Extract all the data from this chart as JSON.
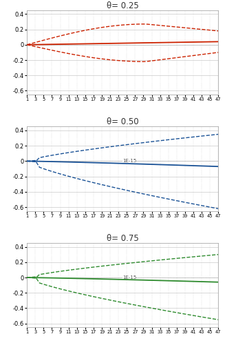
{
  "panels": [
    {
      "title": "θ= 0.25",
      "color": "#cc2200",
      "type": "bell"
    },
    {
      "title": "θ= 0.50",
      "color": "#1a5296",
      "type": "diverging"
    },
    {
      "title": "θ= 0.75",
      "color": "#2e8b2e",
      "type": "diverging"
    }
  ],
  "n_points": 47,
  "xlim": [
    1,
    47
  ],
  "ylim": [
    -0.65,
    0.45
  ],
  "yticks": [
    -0.6,
    -0.4,
    -0.2,
    0.0,
    0.2,
    0.4
  ],
  "ytick_labels": [
    "-0.6",
    "-0.4",
    "-0.2",
    "0",
    "0.2",
    "0.4"
  ],
  "background_color": "#ffffff",
  "grid_color": "#bbbbbb",
  "zero_line_color": "#999999",
  "label_1e15_color": "#555555"
}
